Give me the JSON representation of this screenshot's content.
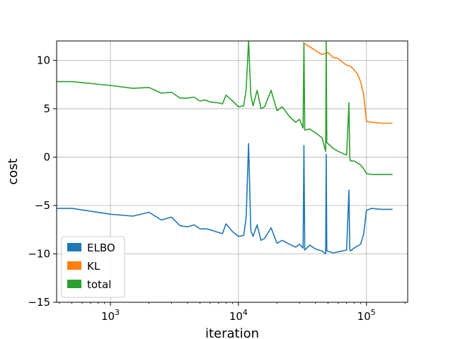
{
  "chart_data": {
    "type": "line",
    "title": "",
    "xlabel": "iteration",
    "ylabel": "cost",
    "xscale": "log",
    "xlim": [
      380,
      210000
    ],
    "ylim": [
      -15,
      12
    ],
    "grid": true,
    "legend_position": "lower-left",
    "x_ticks": [
      1000,
      10000,
      100000
    ],
    "x_tick_labels": [
      {
        "base": "10",
        "exp": "3"
      },
      {
        "base": "10",
        "exp": "4"
      },
      {
        "base": "10",
        "exp": "5"
      }
    ],
    "y_ticks": [
      -15,
      -10,
      -5,
      0,
      5,
      10
    ],
    "y_tick_labels": [
      "−15",
      "−10",
      "−5",
      "0",
      "5",
      "10"
    ],
    "series": [
      {
        "name": "ELBO",
        "color": "#1f77b4",
        "x": [
          380,
          500,
          1000,
          1500,
          2000,
          2500,
          3000,
          3500,
          4000,
          4500,
          5000,
          5500,
          6000,
          7000,
          7500,
          8000,
          9000,
          10000,
          11000,
          11500,
          12000,
          12500,
          13000,
          14000,
          15000,
          16000,
          18000,
          20000,
          22000,
          25000,
          28000,
          30000,
          32000,
          32500,
          33000,
          36000,
          40000,
          45000,
          48000,
          48500,
          49000,
          55000,
          60000,
          70000,
          73000,
          74000,
          75000,
          80000,
          90000,
          95000,
          100000,
          110000,
          130000,
          160000
        ],
        "y": [
          -5.3,
          -5.3,
          -5.9,
          -6.1,
          -5.7,
          -6.5,
          -6.2,
          -7.1,
          -7.2,
          -7.0,
          -7.4,
          -7.4,
          -7.5,
          -7.8,
          -7.9,
          -6.9,
          -7.7,
          -8.2,
          -8.1,
          -6.2,
          1.4,
          -7.6,
          -8.2,
          -7.0,
          -8.6,
          -8.4,
          -7.3,
          -8.9,
          -8.6,
          -9.0,
          -9.3,
          -9.0,
          -9.4,
          1.2,
          -9.6,
          -9.1,
          -9.5,
          -9.7,
          -10.0,
          0.3,
          -9.7,
          -9.9,
          -9.8,
          -9.6,
          -3.4,
          -9.5,
          -9.7,
          -9.4,
          -9.0,
          -8.0,
          -5.5,
          -5.3,
          -5.4,
          -5.4
        ]
      },
      {
        "name": "KL",
        "color": "#ff7f0e",
        "x": [
          32000,
          36000,
          40000,
          45000,
          50000,
          55000,
          60000,
          65000,
          70000,
          75000,
          80000,
          85000,
          90000,
          95000,
          100000,
          110000,
          130000,
          160000
        ],
        "y": [
          11.8,
          11.4,
          11.0,
          10.6,
          10.8,
          10.3,
          10.2,
          9.8,
          9.5,
          9.4,
          9.0,
          8.6,
          7.8,
          6.5,
          3.7,
          3.6,
          3.5,
          3.5
        ]
      },
      {
        "name": "total",
        "color": "#2ca02c",
        "x": [
          380,
          500,
          1000,
          1500,
          2000,
          2500,
          3000,
          3500,
          4000,
          4500,
          5000,
          5500,
          6000,
          7000,
          7500,
          8000,
          9000,
          10000,
          11000,
          11500,
          12000,
          12500,
          13000,
          14000,
          15000,
          16000,
          18000,
          20000,
          22000,
          25000,
          28000,
          30000,
          32000,
          32500,
          33000,
          36000,
          40000,
          45000,
          48000,
          48500,
          49000,
          55000,
          60000,
          70000,
          73000,
          74000,
          75000,
          80000,
          90000,
          95000,
          100000,
          110000,
          130000,
          160000
        ],
        "y": [
          7.8,
          7.8,
          7.4,
          7.1,
          7.2,
          6.6,
          6.7,
          6.1,
          6.1,
          6.2,
          5.8,
          5.9,
          5.7,
          5.6,
          5.5,
          6.4,
          5.8,
          5.2,
          5.3,
          7.0,
          12.0,
          6.4,
          5.3,
          6.9,
          5.0,
          5.2,
          6.9,
          4.8,
          5.2,
          4.2,
          3.6,
          3.9,
          3.0,
          11.8,
          2.8,
          2.9,
          2.5,
          2.0,
          0.6,
          12.0,
          1.5,
          0.9,
          0.6,
          0.2,
          5.6,
          0.0,
          -0.4,
          -0.4,
          -0.8,
          -1.2,
          -1.7,
          -1.8,
          -1.8,
          -1.8
        ]
      }
    ]
  }
}
